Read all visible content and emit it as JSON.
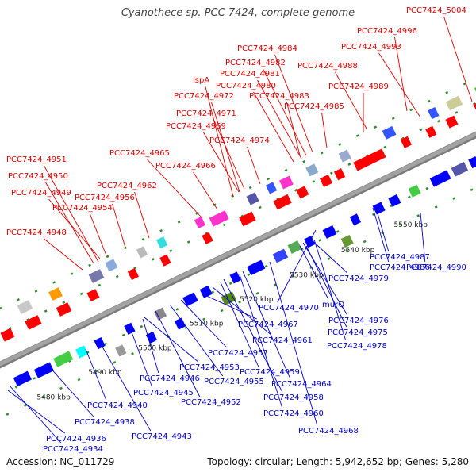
{
  "title": "Cyanothece sp. PCC 7424, complete genome",
  "footer": {
    "accession": "Accession: NC_011729",
    "summary": "Topology: circular; Length: 5,942,652 bp; Genes: 5,280"
  },
  "colors": {
    "backbone": "#a3a3a3",
    "top_label": "#dd0000",
    "bottom_label": "#0000cc",
    "tick": "#2e8b2e",
    "forward_gene": "#ff0000",
    "reverse_gene": "#0000ff"
  },
  "axis": {
    "ticks": [
      "5480 kbp",
      "5490 kbp",
      "5500 kbp",
      "5510 kbp",
      "5520 kbp",
      "5530 kbp",
      "5540 kbp",
      "5550 kbp"
    ]
  },
  "top_labels": [
    "PCC7424_5004",
    "PCC7424_4996",
    "PCC7424_4993",
    "PCC7424_4984",
    "PCC7424_4982",
    "PCC7424_4988",
    "PCC7424_4981",
    "lspA",
    "PCC7424_4980",
    "PCC7424_4989",
    "PCC7424_4972",
    "PCC7424_4983",
    "PCC7424_4985",
    "PCC7424_4971",
    "PCC7424_4969",
    "PCC7424_4974",
    "PCC7424_4965",
    "PCC7424_4951",
    "PCC7424_4966",
    "PCC7424_4950",
    "PCC7424_4962",
    "PCC7424_4949",
    "PCC7424_4956",
    "PCC7424_4954",
    "PCC7424_4948"
  ],
  "bottom_labels": [
    "PCC7424_4987",
    "PCC7424_4986",
    "PCC7424_4990",
    "PCC7424_4979",
    "PCC7424_4970",
    "murQ",
    "PCC7424_4976",
    "PCC7424_4967",
    "PCC7424_4975",
    "PCC7424_4961",
    "PCC7424_4978",
    "PCC7424_4957",
    "PCC7424_4953",
    "PCC7424_4959",
    "PCC7424_4946",
    "PCC7424_4955",
    "PCC7424_4964",
    "PCC7424_4945",
    "PCC7424_4958",
    "PCC7424_4940",
    "PCC7424_4952",
    "PCC7424_4960",
    "PCC7424_4938",
    "PCC7424_4968",
    "PCC7424_4943",
    "PCC7424_4936",
    "PCC7424_4934"
  ]
}
